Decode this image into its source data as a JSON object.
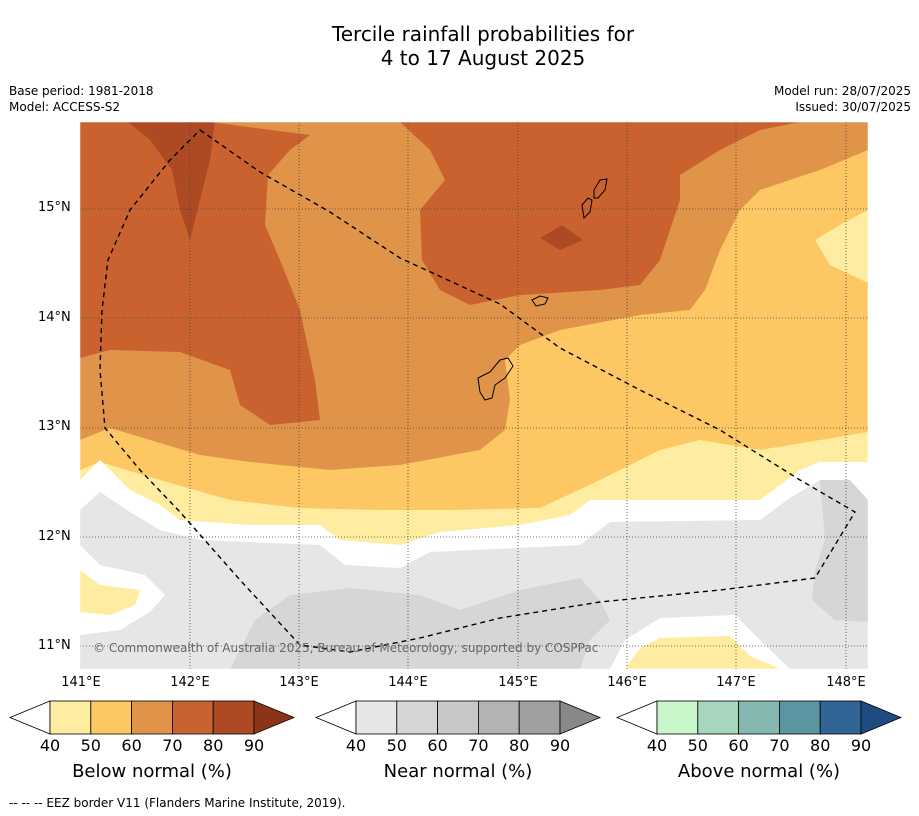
{
  "title": {
    "line1": "Tercile rainfall probabilities for",
    "line2": "4 to 17 August 2025"
  },
  "meta": {
    "base_period": "Base period: 1981-2018",
    "model": "Model: ACCESS-S2",
    "model_run": "Model run: 28/07/2025",
    "issued": "Issued: 30/07/2025"
  },
  "map": {
    "lat_labels": [
      "15°N",
      "14°N",
      "13°N",
      "12°N",
      "11°N"
    ],
    "lon_labels": [
      "141°E",
      "142°E",
      "143°E",
      "144°E",
      "145°E",
      "146°E",
      "147°E",
      "148°E"
    ],
    "copyright": "© Commonwealth of Australia 2025, Bureau of Meteorology, supported by COSPPac",
    "eez_border_icon": "dashed-line"
  },
  "colorbars": [
    {
      "title": "Below normal (%)",
      "ticks": [
        "40",
        "50",
        "60",
        "70",
        "80",
        "90"
      ],
      "colors": [
        "#feeda0",
        "#fdc864",
        "#e0944a",
        "#c9622f",
        "#ad4a24",
        "#8c3417"
      ]
    },
    {
      "title": "Near normal (%)",
      "ticks": [
        "40",
        "50",
        "60",
        "70",
        "80",
        "90"
      ],
      "colors": [
        "#e6e6e6",
        "#d6d6d6",
        "#c8c8c8",
        "#b3b3b3",
        "#a0a0a0",
        "#888888"
      ]
    },
    {
      "title": "Above normal (%)",
      "ticks": [
        "40",
        "50",
        "60",
        "70",
        "80",
        "90"
      ],
      "colors": [
        "#c9f7cb",
        "#a6d6bb",
        "#84b8b0",
        "#5b95a2",
        "#326595",
        "#1f4a82"
      ]
    }
  ],
  "footnote": "--  --  -- EEZ border V11 (Flanders Marine Institute, 2019)."
}
